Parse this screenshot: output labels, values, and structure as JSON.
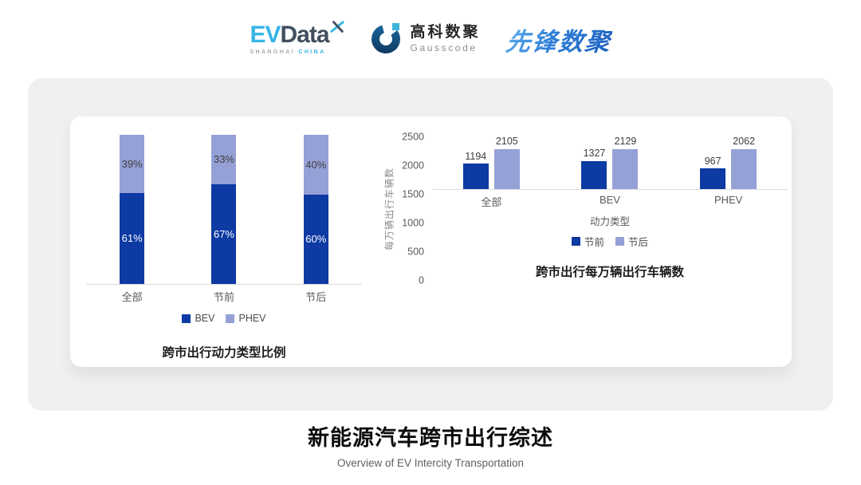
{
  "header": {
    "logos": {
      "evdata": {
        "ev": "EV",
        "data": "Data",
        "sub1": "SHANGHAI",
        "sub2": "CHINA"
      },
      "gausscode": {
        "cn": "高科数聚",
        "en": "Gausscode"
      },
      "pioneer": {
        "text": "先锋数聚"
      }
    }
  },
  "colors": {
    "bev": "#0d3aa3",
    "phev": "#95a1d6",
    "evdata_cyan": "#35b5e5",
    "evdata_dark": "#414e5e",
    "gausscode_dark": "#14527e",
    "gausscode_cyan": "#3fb4dc",
    "pioneer_blue": "#2470cf",
    "card_bg": "#f0f0f1",
    "axis": "#dcdcdc"
  },
  "chart_data": [
    {
      "type": "bar",
      "subtype": "stacked-percent",
      "title": "跨市出行动力类型比例",
      "categories": [
        "全部",
        "节前",
        "节后"
      ],
      "series": [
        {
          "name": "BEV",
          "color": "#0d3aa3",
          "label_color": "#ffffff",
          "values": [
            61,
            67,
            60
          ],
          "labels": [
            "61%",
            "67%",
            "60%"
          ]
        },
        {
          "name": "PHEV",
          "color": "#95a1d6",
          "label_color": "#3f3f3f",
          "values": [
            39,
            33,
            40
          ],
          "labels": [
            "39%",
            "33%",
            "40%"
          ]
        }
      ],
      "ylim": [
        0,
        100
      ],
      "grid": false,
      "legend_position": "bottom"
    },
    {
      "type": "bar",
      "subtype": "grouped",
      "title": "跨市出行每万辆出行车辆数",
      "categories": [
        "全部",
        "BEV",
        "PHEV"
      ],
      "xlabel": "动力类型",
      "ylabel": "每万辆出行车辆数",
      "yticks": [
        0,
        500,
        1000,
        1500,
        2000,
        2500
      ],
      "ylim": [
        0,
        2500
      ],
      "grid": false,
      "series": [
        {
          "name": "节前",
          "color": "#0d3aa3",
          "values": [
            1194,
            1327,
            967
          ]
        },
        {
          "name": "节后",
          "color": "#95a1d6",
          "values": [
            2105,
            2129,
            2062
          ]
        }
      ],
      "legend_position": "bottom"
    }
  ],
  "footer": {
    "title": "新能源汽车跨市出行综述",
    "subtitle": "Overview of EV Intercity Transportation"
  }
}
